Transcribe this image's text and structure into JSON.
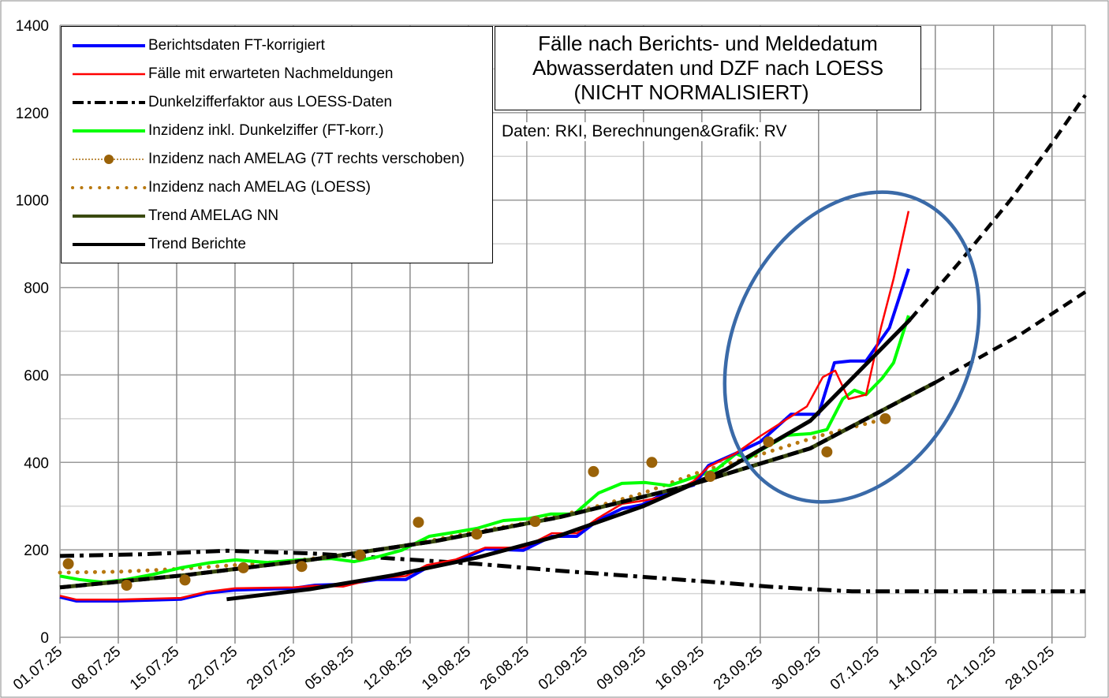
{
  "chart_data": {
    "type": "line",
    "title": "Fälle nach Berichts- und Meldedatum",
    "subtitle_lines": [
      "Abwasserdaten und DZF nach LOESS",
      "(NICHT NORMALISIERT)"
    ],
    "credit": "Daten: RKI, Berechnungen&Grafik: RV",
    "xlabel": "",
    "ylabel": "",
    "x_unit": "days since 01.07.25",
    "xlim": [
      0,
      123
    ],
    "ylim": [
      0,
      1400
    ],
    "y_ticks": [
      0,
      200,
      400,
      600,
      800,
      1000,
      1200,
      1400
    ],
    "y_tick_labels": [
      "0",
      "200",
      "400",
      "600",
      "800",
      "1000",
      "1200",
      "1400"
    ],
    "minor_y_gridlines": [
      100,
      300,
      500,
      700,
      900,
      1100,
      1300
    ],
    "x_tick_labels": [
      "01.07.25",
      "08.07.25",
      "15.07.25",
      "22.07.25",
      "29.07.25",
      "05.08.25",
      "12.08.25",
      "19.08.25",
      "26.08.25",
      "02.09.25",
      "09.09.25",
      "16.09.25",
      "23.09.25",
      "30.09.25",
      "07.10.25",
      "14.10.25",
      "21.10.25",
      "28.10.25"
    ],
    "x_tick_step_days": 7,
    "grid": true,
    "legend_position": "top-left",
    "series": [
      {
        "name": "Berichtsdaten FT-korrigiert",
        "color": "#0000ff",
        "style": "solid",
        "x": [
          0,
          2,
          7,
          14.5,
          17.6,
          21,
          28,
          30.6,
          34,
          38,
          41.5,
          44,
          47.5,
          51,
          55.6,
          59,
          62,
          64.5,
          67.4,
          69.8,
          72.6,
          76,
          77.8,
          81,
          84,
          87.7,
          91,
          92.9,
          94.8,
          96.7,
          99.5,
          101.8
        ],
        "y": [
          92,
          83,
          83,
          87,
          101,
          108,
          112,
          119,
          121,
          132,
          132,
          159,
          173,
          202,
          199,
          231,
          231,
          267,
          294,
          303,
          330,
          348,
          393,
          420,
          447,
          510,
          510,
          628,
          632,
          632,
          708,
          843
        ]
      },
      {
        "name": "Fälle mit erwarteten Nachmeldungen",
        "color": "#ff0000",
        "style": "solid",
        "x": [
          0,
          2,
          7,
          14.5,
          17.6,
          21,
          28,
          30.6,
          34,
          38,
          41.5,
          44,
          47.5,
          51,
          55.6,
          59,
          62,
          64.5,
          67.4,
          69.8,
          72.6,
          76,
          77.8,
          81,
          84,
          87.7,
          89.6,
          91.5,
          93,
          94.6,
          96.7,
          98.5,
          100,
          101.8
        ],
        "y": [
          95,
          86,
          86,
          90,
          104,
          112,
          114,
          118,
          116,
          135,
          140,
          165,
          178,
          205,
          205,
          238,
          238,
          272,
          305,
          312,
          322,
          357,
          390,
          420,
          460,
          505,
          528,
          595,
          610,
          545,
          555,
          710,
          820,
          975
        ]
      },
      {
        "name": "Dunkelzifferfaktor aus LOESS-Daten",
        "color": "#000000",
        "style": "dashdot",
        "x": [
          0,
          10,
          20,
          30,
          40,
          50,
          60,
          70,
          80,
          85,
          90,
          95,
          100,
          110,
          123
        ],
        "y": [
          186,
          190,
          198,
          192,
          180,
          168,
          152,
          138,
          124,
          116,
          110,
          105,
          105,
          105,
          105
        ]
      },
      {
        "name": "Inzidenz inkl. Dunkelziffer (FT-korr.)",
        "color": "#00ff00",
        "style": "solid",
        "x": [
          0,
          2.3,
          5.1,
          7.9,
          11.2,
          14.5,
          17.8,
          21.1,
          24.9,
          28.7,
          32.5,
          35.3,
          38.1,
          41,
          44.3,
          46.6,
          50,
          53.2,
          56.1,
          58.9,
          61.7,
          64.6,
          67.4,
          70.2,
          73.1,
          75.9,
          78.7,
          81.1,
          82.5,
          83.9,
          87.2,
          90.1,
          92,
          93.9,
          95.3,
          96.7,
          98.6,
          100,
          101.8
        ],
        "y": [
          140,
          132,
          126,
          132,
          144,
          159,
          170,
          177,
          171,
          177,
          180,
          173,
          184,
          199,
          231,
          238,
          249,
          267,
          271,
          282,
          282,
          330,
          352,
          354,
          347,
          365,
          383,
          420,
          408,
          426,
          462,
          466,
          475,
          545,
          565,
          555,
          592,
          628,
          736
        ]
      },
      {
        "name": "Inzidenz nach AMELAG (7T rechts verschoben)",
        "color": "#a86b0c",
        "style": "dotted-markers",
        "x": [
          1,
          8,
          15,
          22,
          29,
          36,
          43,
          50,
          57,
          64,
          71,
          78,
          85,
          92,
          99
        ],
        "y": [
          168,
          119,
          131,
          159,
          162,
          188,
          263,
          236,
          265,
          379,
          400,
          368,
          447,
          424,
          500
        ]
      },
      {
        "name": "Inzidenz nach AMELAG (LOESS)",
        "color": "#b8780f",
        "style": "dotted",
        "x": [
          0,
          7,
          14,
          21,
          28,
          35,
          42,
          49,
          56,
          63,
          70,
          77,
          84,
          91,
          99
        ],
        "y": [
          148,
          150,
          156,
          165,
          175,
          190,
          212,
          238,
          262,
          292,
          330,
          380,
          418,
          460,
          500
        ]
      },
      {
        "name": "Trend AMELAG NN",
        "color": "#3a4a10",
        "style": "solid",
        "x": [
          0,
          15,
          30,
          45,
          60,
          75,
          90,
          105
        ],
        "y": [
          114,
          142,
          177,
          220,
          275,
          345,
          432,
          583
        ],
        "projection": {
          "x": [
            105,
            115,
            123
          ],
          "y": [
            583,
            690,
            790
          ]
        }
      },
      {
        "name": "Trend Berichte",
        "color": "#000000",
        "style": "solid",
        "x": [
          20,
          30,
          40,
          50,
          60,
          70,
          80,
          90,
          102
        ],
        "y": [
          87,
          110,
          142,
          182,
          233,
          300,
          385,
          495,
          727
        ],
        "projection": {
          "x": [
            102,
            108,
            114,
            119,
            123
          ],
          "y": [
            727,
            860,
            1000,
            1130,
            1240
          ]
        }
      }
    ],
    "annotation": {
      "type": "ellipse",
      "color": "#3a6aa8",
      "description": "highlight of recent rise"
    }
  }
}
